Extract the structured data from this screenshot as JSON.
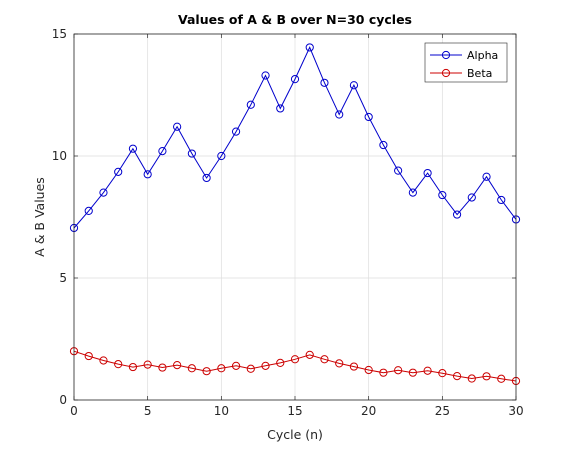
{
  "chart_data": {
    "type": "line",
    "title": "Values of A & B over N=30 cycles",
    "xlabel": "Cycle (n)",
    "ylabel": "A & B Values",
    "xlim": [
      0,
      30
    ],
    "ylim": [
      0,
      15
    ],
    "xticks": [
      0,
      5,
      10,
      15,
      20,
      25,
      30
    ],
    "yticks": [
      0,
      5,
      10,
      15
    ],
    "xtick_labels": [
      "0",
      "5",
      "10",
      "15",
      "20",
      "25",
      "30"
    ],
    "ytick_labels": [
      "0",
      "5",
      "10",
      "15"
    ],
    "grid": true,
    "legend_position": "top-right",
    "x": [
      0,
      1,
      2,
      3,
      4,
      5,
      6,
      7,
      8,
      9,
      10,
      11,
      12,
      13,
      14,
      15,
      16,
      17,
      18,
      19,
      20,
      21,
      22,
      23,
      24,
      25,
      26,
      27,
      28,
      29,
      30
    ],
    "series": [
      {
        "name": "Alpha",
        "color": "#0000cc",
        "marker": "circle",
        "values": [
          7.05,
          7.75,
          8.5,
          9.35,
          10.3,
          9.25,
          10.2,
          11.2,
          10.1,
          9.1,
          10.0,
          11.0,
          12.1,
          13.3,
          11.95,
          13.15,
          14.45,
          13.0,
          11.7,
          12.9,
          11.6,
          10.45,
          9.4,
          8.5,
          9.3,
          8.4,
          7.6,
          8.3,
          9.15,
          8.2,
          7.4
        ]
      },
      {
        "name": "Beta",
        "color": "#cc0000",
        "marker": "circle",
        "values": [
          2.0,
          1.8,
          1.62,
          1.47,
          1.35,
          1.45,
          1.33,
          1.43,
          1.3,
          1.18,
          1.3,
          1.4,
          1.28,
          1.4,
          1.52,
          1.67,
          1.85,
          1.67,
          1.5,
          1.37,
          1.23,
          1.12,
          1.22,
          1.12,
          1.2,
          1.1,
          0.98,
          0.88,
          0.97,
          0.87,
          0.78
        ]
      }
    ]
  }
}
